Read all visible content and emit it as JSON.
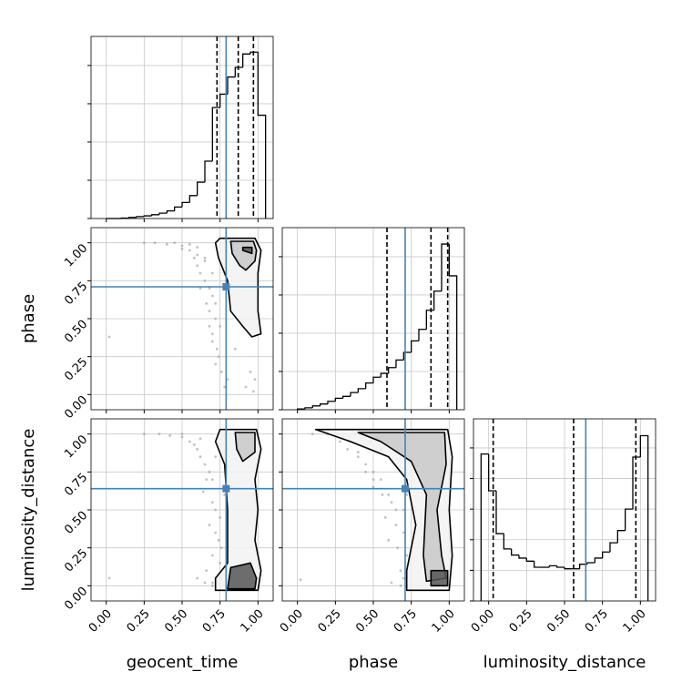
{
  "chart_data": {
    "type": "corner",
    "parameters": [
      "geocent_time",
      "phase",
      "luminosity_distance"
    ],
    "lim": [
      -0.1,
      1.1
    ],
    "ticks": [
      {
        "value": 0,
        "label": "0.00"
      },
      {
        "value": 0.25,
        "label": "0.25"
      },
      {
        "value": 0.5,
        "label": "0.50"
      },
      {
        "value": 0.75,
        "label": "0.75"
      },
      {
        "value": 1,
        "label": "1.00"
      }
    ],
    "grid": true,
    "truths": [
      0.79,
      0.71,
      0.64
    ],
    "truth_color": "#4682b4",
    "hist_color": "#000000",
    "point_color": "#999999",
    "histograms": [
      {
        "bins": [
          0,
          0.05,
          0.1,
          0.15,
          0.2,
          0.25,
          0.3,
          0.35,
          0.4,
          0.45,
          0.5,
          0.55,
          0.6,
          0.65,
          0.7,
          0.75,
          0.8,
          0.85,
          0.9,
          0.95,
          1.0,
          1.05
        ],
        "counts": [
          0,
          0,
          0.01,
          0.03,
          0.05,
          0.07,
          0.1,
          0.14,
          0.2,
          0.3,
          0.42,
          0.6,
          0.95,
          1.5,
          2.9,
          3.25,
          3.7,
          3.95,
          4.3,
          4.35,
          2.7
        ],
        "quantiles": [
          0.73,
          0.87,
          0.97
        ],
        "ylim": [
          0,
          4.76
        ],
        "yticks": [
          0,
          1,
          2,
          3,
          4
        ]
      },
      {
        "bins": [
          0,
          0.05,
          0.1,
          0.15,
          0.2,
          0.25,
          0.3,
          0.35,
          0.4,
          0.45,
          0.5,
          0.55,
          0.6,
          0.65,
          0.7,
          0.75,
          0.8,
          0.85,
          0.9,
          0.95,
          1.0,
          1.05
        ],
        "counts": [
          0.02,
          0.05,
          0.1,
          0.15,
          0.22,
          0.3,
          0.35,
          0.45,
          0.55,
          0.7,
          0.85,
          0.95,
          1.1,
          1.3,
          1.5,
          1.8,
          2.1,
          2.6,
          3.1,
          4.33,
          3.5
        ],
        "quantiles": [
          0.59,
          0.88,
          0.99
        ],
        "ylim": [
          0,
          4.76
        ],
        "yticks": [
          0,
          1,
          2,
          3,
          4
        ]
      },
      {
        "bins": [
          -0.05,
          0,
          0.05,
          0.1,
          0.15,
          0.2,
          0.25,
          0.3,
          0.35,
          0.4,
          0.45,
          0.5,
          0.55,
          0.6,
          0.65,
          0.7,
          0.75,
          0.8,
          0.85,
          0.9,
          0.95,
          1.0,
          1.05
        ],
        "counts": [
          4.8,
          3.6,
          2.2,
          1.7,
          1.5,
          1.4,
          1.3,
          1.1,
          1.1,
          1.15,
          1.1,
          1.05,
          1.05,
          1.2,
          1.25,
          1.4,
          1.6,
          1.9,
          2.3,
          3.0,
          4.7,
          5.4
        ],
        "quantiles": [
          0.03,
          0.56,
          0.97
        ],
        "ylim": [
          0,
          5.95
        ],
        "yticks": [
          0,
          1,
          2,
          3,
          4,
          5
        ]
      }
    ],
    "pairs": [
      {
        "points": {
          "x": [
            0.25,
            0.32,
            0.4,
            0.45,
            0.5,
            0.55,
            0.58,
            0.6,
            0.62,
            0.65,
            0.68,
            0.7,
            0.72,
            0.55,
            0.6,
            0.65,
            0.7,
            0.5,
            0.62,
            0.68,
            0.72,
            0.75,
            0.6,
            0.66,
            0.7,
            0.73,
            0.68,
            0.72,
            0.76,
            0.78,
            0.65,
            0.7,
            0.74,
            0.98,
            0.97,
            0.95,
            0.92,
            0.85,
            0.8,
            0.02
          ],
          "y": [
            1.0,
            1.0,
            0.99,
            1.0,
            0.98,
            0.95,
            0.9,
            0.85,
            0.8,
            0.75,
            0.7,
            0.65,
            0.6,
            0.99,
            0.92,
            0.88,
            0.8,
            0.96,
            0.7,
            0.55,
            0.5,
            0.45,
            0.97,
            0.6,
            0.4,
            0.3,
            0.45,
            0.2,
            0.15,
            0.05,
            0.9,
            0.35,
            0.25,
            0.1,
            0.02,
            0.15,
            0.05,
            0.3,
            0.1,
            0.38
          ]
        },
        "contours": [
          {
            "x": [
              0.75,
              0.98,
              1.02,
              1.0,
              1.0,
              1.02,
              0.96,
              0.9,
              0.82,
              0.8,
              0.74,
              0.72
            ],
            "y": [
              1.03,
              1.03,
              0.95,
              0.8,
              0.55,
              0.4,
              0.38,
              0.45,
              0.55,
              0.75,
              0.9,
              1.0
            ]
          },
          {
            "x": [
              0.82,
              0.97,
              0.99,
              0.98,
              0.92,
              0.88,
              0.83
            ],
            "y": [
              1.01,
              1.01,
              0.95,
              0.88,
              0.82,
              0.85,
              0.93
            ]
          },
          {
            "x": [
              0.9,
              0.96,
              0.96,
              0.9
            ],
            "y": [
              0.97,
              0.97,
              0.93,
              0.95
            ]
          }
        ]
      },
      {
        "points": {
          "x": [
            0.25,
            0.35,
            0.42,
            0.5,
            0.55,
            0.6,
            0.62,
            0.65,
            0.68,
            0.7,
            0.5,
            0.58,
            0.64,
            0.7,
            0.72,
            0.75,
            0.6,
            0.66,
            0.7,
            0.74,
            0.68,
            0.72,
            0.76,
            0.65,
            0.7,
            0.78,
            0.62,
            0.66,
            0.72,
            0.98,
            0.97,
            0.99,
            0.02,
            0.75,
            0.7,
            0.8
          ],
          "y": [
            1.0,
            1.0,
            0.99,
            0.98,
            0.95,
            0.9,
            0.85,
            0.8,
            0.75,
            0.7,
            1.0,
            0.93,
            0.62,
            0.55,
            0.5,
            0.45,
            0.05,
            0.1,
            0.2,
            0.3,
            0.4,
            0.35,
            0.25,
            0.02,
            0.0,
            0.6,
            0.97,
            0.7,
            0.85,
            0.4,
            0.6,
            0.8,
            0.05,
            0.15,
            0.02,
            0.9
          ]
        },
        "contours": [
          {
            "x": [
              0.75,
              0.99,
              1.02,
              0.98,
              1.0,
              0.98,
              1.02,
              1.0,
              0.72,
              0.72,
              0.8,
              0.8,
              0.78,
              0.72
            ],
            "y": [
              1.03,
              1.03,
              0.9,
              0.7,
              0.5,
              0.3,
              0.1,
              -0.03,
              -0.03,
              0.05,
              0.15,
              0.5,
              0.8,
              0.95
            ]
          },
          {
            "x": [
              0.85,
              0.98,
              0.98,
              0.9,
              0.86
            ],
            "y": [
              1.01,
              1.01,
              0.88,
              0.82,
              0.9
            ]
          },
          {
            "x": [
              0.82,
              0.95,
              0.99,
              0.98,
              0.8
            ],
            "y": [
              0.12,
              0.15,
              0.05,
              -0.02,
              -0.02
            ]
          }
        ]
      },
      {
        "points": {
          "x": [
            0.2,
            0.28,
            0.33,
            0.4,
            0.45,
            0.5,
            0.55,
            0.6,
            0.62,
            0.65,
            0.1,
            0.25,
            0.38,
            0.48,
            0.55,
            0.6,
            0.5,
            0.58,
            0.65,
            0.7,
            0.72,
            0.68,
            0.6,
            0.66,
            0.7,
            0.4,
            0.5,
            0.56,
            0.72,
            0.74,
            0.3,
            0.45,
            0.02,
            0.62,
            0.68,
            0.7
          ],
          "y": [
            1.0,
            0.95,
            0.9,
            0.85,
            0.8,
            0.75,
            0.7,
            0.6,
            0.55,
            0.5,
            1.0,
            1.0,
            1.0,
            0.95,
            0.9,
            0.85,
            0.65,
            0.45,
            0.4,
            0.35,
            0.2,
            0.1,
            0.3,
            0.25,
            0.05,
            0.88,
            0.7,
            0.6,
            0.6,
            0.15,
            0.98,
            0.75,
            0.04,
            0.02,
            0.0,
            0.5
          ]
        },
        "contours": [
          {
            "x": [
              0.12,
              0.99,
              1.02,
              1.0,
              1.02,
              1.0,
              0.72,
              0.72,
              0.78,
              0.72,
              0.6,
              0.35
            ],
            "y": [
              1.03,
              1.03,
              0.85,
              0.5,
              0.2,
              -0.03,
              -0.03,
              0.1,
              0.4,
              0.7,
              0.85,
              0.95
            ]
          },
          {
            "x": [
              0.4,
              0.97,
              0.98,
              0.92,
              0.95,
              0.98,
              0.85,
              0.83,
              0.85,
              0.75,
              0.55
            ],
            "y": [
              1.01,
              1.01,
              0.8,
              0.5,
              0.2,
              0.05,
              0.03,
              0.2,
              0.6,
              0.82,
              0.95
            ]
          },
          {
            "x": [
              0.88,
              0.99,
              0.99,
              0.88
            ],
            "y": [
              0.1,
              0.1,
              0.0,
              0.0
            ]
          }
        ]
      }
    ]
  }
}
